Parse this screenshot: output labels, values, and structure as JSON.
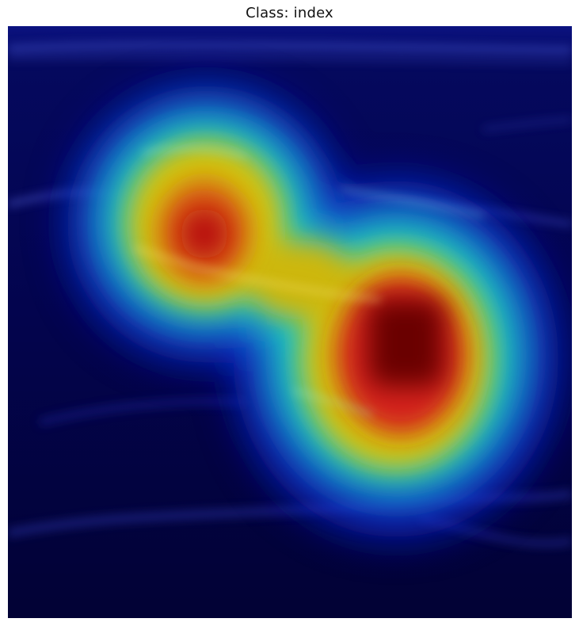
{
  "figure": {
    "title": "Class: index"
  },
  "colors": {
    "background": "#02024a",
    "heat_low": "#0a14c8",
    "heat_cyan": "#1fd2c8",
    "heat_yellow": "#d7c50f",
    "heat_red": "#d61a1a",
    "heat_peak": "#6b0000"
  }
}
